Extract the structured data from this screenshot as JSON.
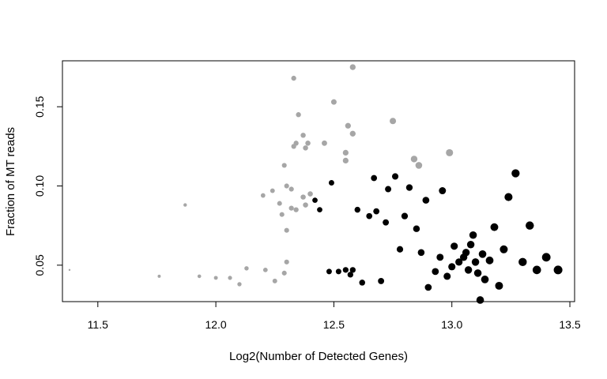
{
  "chart_data": {
    "type": "scatter",
    "title": "",
    "xlabel": "Log2(Number of Detected Genes)",
    "ylabel": "Fraction of MT reads",
    "xlim": [
      11.35,
      13.52
    ],
    "ylim": [
      0.027,
      0.179
    ],
    "x_ticks": [
      11.5,
      12.0,
      12.5,
      13.0,
      13.5
    ],
    "x_tick_labels": [
      "11.5",
      "12.0",
      "12.5",
      "13.0",
      "13.5"
    ],
    "y_ticks": [
      0.05,
      0.1,
      0.15
    ],
    "y_tick_labels": [
      "0.05",
      "0.10",
      "0.15"
    ],
    "grid": false,
    "legend": "none",
    "series": [
      {
        "color": "#a6a6a6",
        "points": [
          [
            11.38,
            0.047
          ],
          [
            11.76,
            0.043
          ],
          [
            11.87,
            0.088
          ],
          [
            11.93,
            0.043
          ],
          [
            12.0,
            0.042
          ],
          [
            12.06,
            0.042
          ],
          [
            12.1,
            0.038
          ],
          [
            12.13,
            0.048
          ],
          [
            12.2,
            0.094
          ],
          [
            12.21,
            0.047
          ],
          [
            12.24,
            0.097
          ],
          [
            12.25,
            0.04
          ],
          [
            12.27,
            0.089
          ],
          [
            12.28,
            0.082
          ],
          [
            12.29,
            0.113
          ],
          [
            12.29,
            0.045
          ],
          [
            12.3,
            0.072
          ],
          [
            12.3,
            0.1
          ],
          [
            12.3,
            0.052
          ],
          [
            12.32,
            0.086
          ],
          [
            12.32,
            0.098
          ],
          [
            12.33,
            0.125
          ],
          [
            12.33,
            0.168
          ],
          [
            12.34,
            0.127
          ],
          [
            12.34,
            0.085
          ],
          [
            12.35,
            0.145
          ],
          [
            12.37,
            0.093
          ],
          [
            12.37,
            0.132
          ],
          [
            12.38,
            0.124
          ],
          [
            12.38,
            0.088
          ],
          [
            12.39,
            0.127
          ],
          [
            12.4,
            0.095
          ],
          [
            12.46,
            0.127
          ],
          [
            12.5,
            0.153
          ],
          [
            12.55,
            0.121
          ],
          [
            12.55,
            0.116
          ],
          [
            12.56,
            0.138
          ],
          [
            12.58,
            0.133
          ],
          [
            12.58,
            0.175
          ],
          [
            12.75,
            0.141
          ],
          [
            12.84,
            0.117
          ],
          [
            12.86,
            0.113
          ],
          [
            12.99,
            0.121
          ]
        ]
      },
      {
        "color": "#000000",
        "points": [
          [
            12.42,
            0.091
          ],
          [
            12.44,
            0.085
          ],
          [
            12.48,
            0.046
          ],
          [
            12.49,
            0.102
          ],
          [
            12.52,
            0.046
          ],
          [
            12.55,
            0.047
          ],
          [
            12.57,
            0.044
          ],
          [
            12.58,
            0.047
          ],
          [
            12.6,
            0.085
          ],
          [
            12.62,
            0.039
          ],
          [
            12.65,
            0.081
          ],
          [
            12.67,
            0.105
          ],
          [
            12.68,
            0.084
          ],
          [
            12.7,
            0.04
          ],
          [
            12.72,
            0.077
          ],
          [
            12.73,
            0.098
          ],
          [
            12.76,
            0.106
          ],
          [
            12.78,
            0.06
          ],
          [
            12.8,
            0.081
          ],
          [
            12.82,
            0.099
          ],
          [
            12.85,
            0.073
          ],
          [
            12.87,
            0.058
          ],
          [
            12.89,
            0.091
          ],
          [
            12.9,
            0.036
          ],
          [
            12.93,
            0.046
          ],
          [
            12.95,
            0.055
          ],
          [
            12.96,
            0.097
          ],
          [
            12.98,
            0.043
          ],
          [
            13.0,
            0.049
          ],
          [
            13.01,
            0.062
          ],
          [
            13.03,
            0.052
          ],
          [
            13.05,
            0.055
          ],
          [
            13.06,
            0.058
          ],
          [
            13.07,
            0.047
          ],
          [
            13.08,
            0.063
          ],
          [
            13.09,
            0.069
          ],
          [
            13.1,
            0.052
          ],
          [
            13.11,
            0.045
          ],
          [
            13.12,
            0.028
          ],
          [
            13.13,
            0.057
          ],
          [
            13.14,
            0.041
          ],
          [
            13.16,
            0.053
          ],
          [
            13.18,
            0.074
          ],
          [
            13.2,
            0.037
          ],
          [
            13.22,
            0.06
          ],
          [
            13.24,
            0.093
          ],
          [
            13.27,
            0.108
          ],
          [
            13.3,
            0.052
          ],
          [
            13.33,
            0.075
          ],
          [
            13.36,
            0.047
          ],
          [
            13.4,
            0.055
          ],
          [
            13.45,
            0.047
          ]
        ]
      }
    ]
  }
}
